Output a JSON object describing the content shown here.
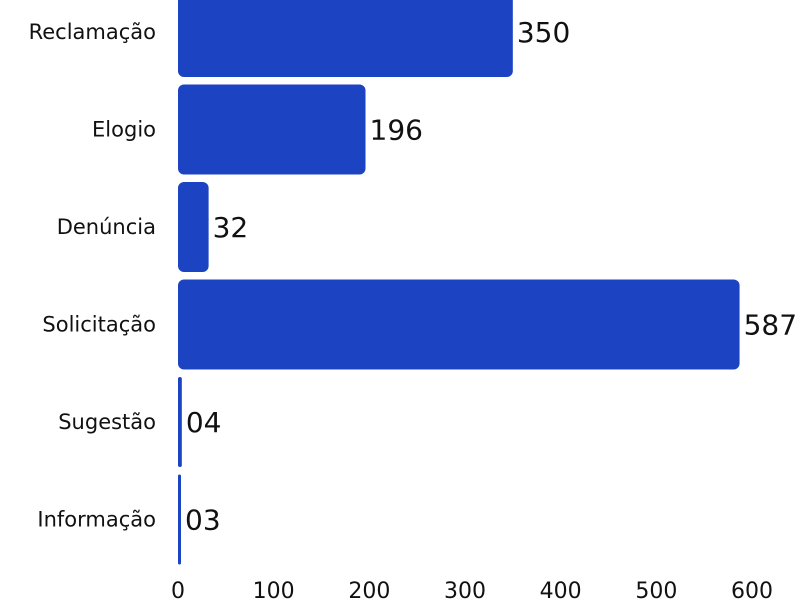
{
  "chart_data": {
    "type": "bar",
    "orientation": "horizontal",
    "categories": [
      "Reclamação",
      "Elogio",
      "Denúncia",
      "Solicitação",
      "Sugestão",
      "Informação"
    ],
    "values": [
      350,
      196,
      32,
      587,
      4,
      3
    ],
    "data_labels": [
      "350",
      "196",
      "32",
      "587",
      "04",
      "03"
    ],
    "xlim": [
      0,
      600
    ],
    "x_ticks": [
      "0",
      "100",
      "200",
      "300",
      "400",
      "500",
      "600"
    ],
    "title": "",
    "xlabel": "",
    "ylabel": "",
    "grid": false,
    "bar_color": "#1c44c2"
  }
}
